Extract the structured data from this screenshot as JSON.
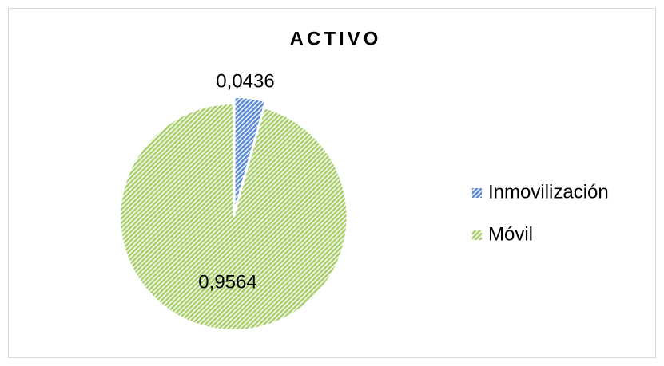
{
  "chart_data": {
    "type": "pie",
    "title": "ACTIVO",
    "categories": [
      "Inmovilización",
      "Móvil"
    ],
    "values": [
      0.0436,
      0.9564
    ],
    "value_labels": [
      "0,0436",
      "0,9564"
    ],
    "colors": [
      "#5b8bd6",
      "#a9cf6e"
    ]
  }
}
